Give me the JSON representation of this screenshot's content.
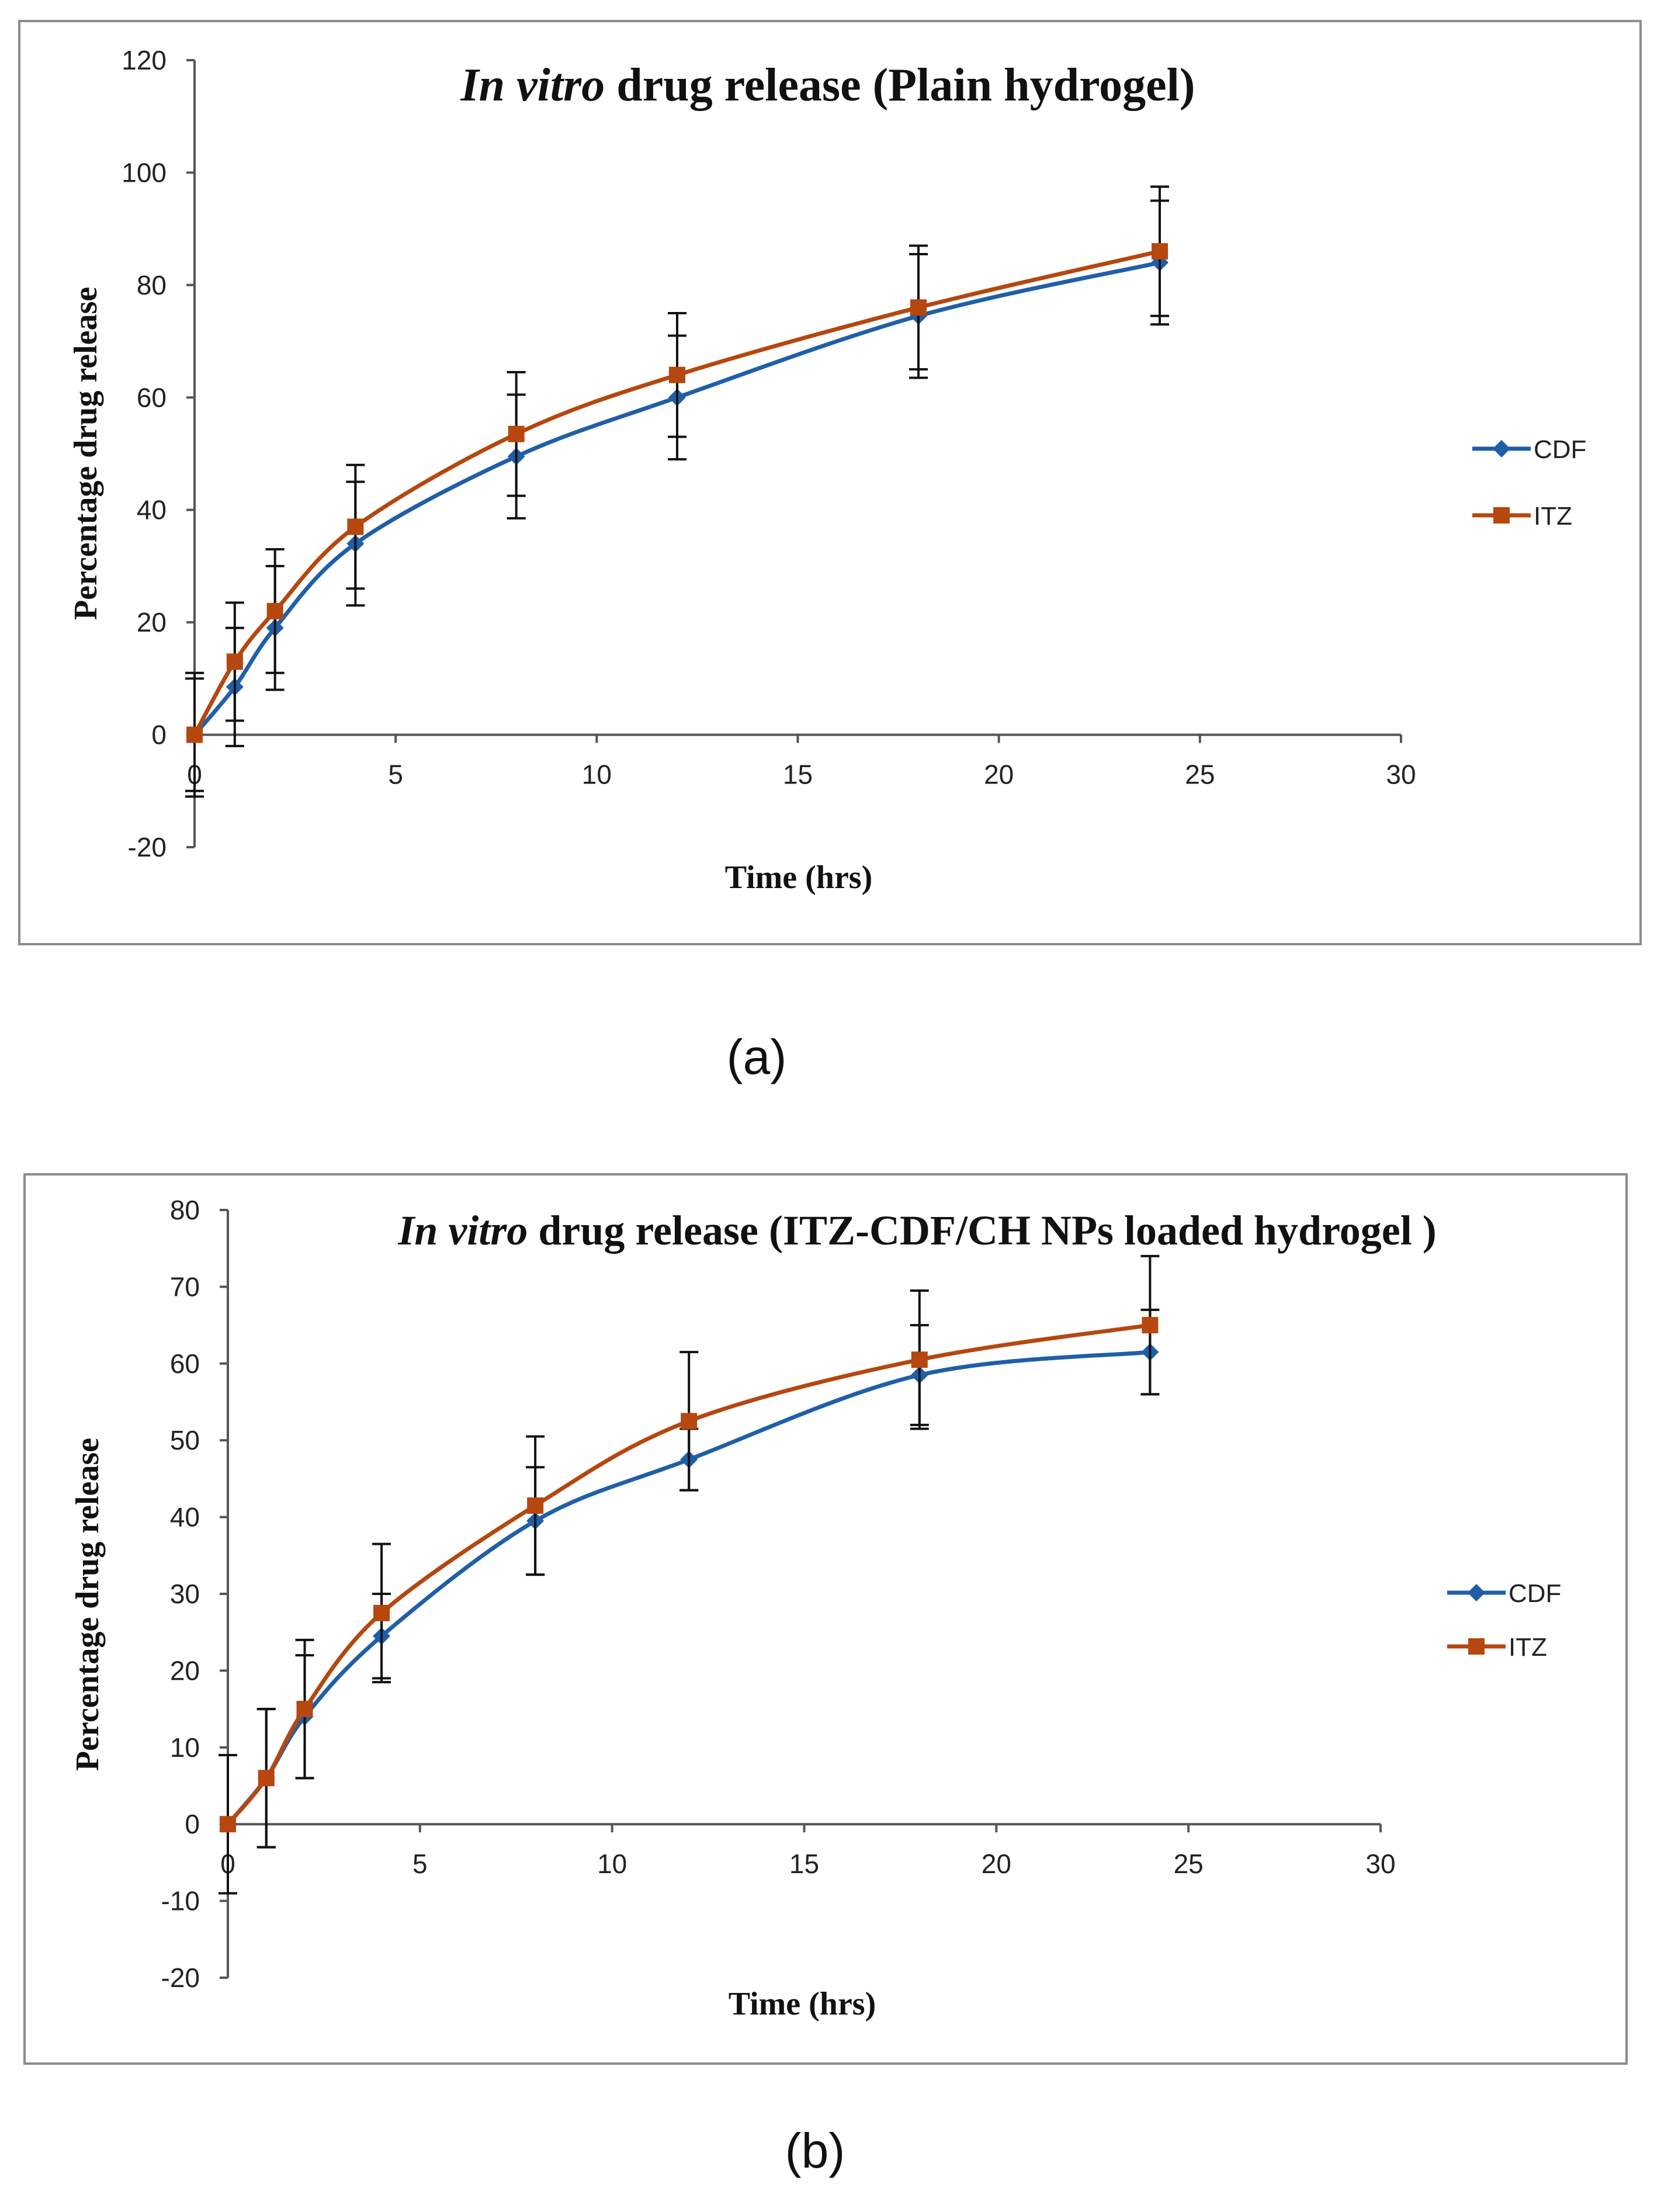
{
  "colors": {
    "CDF": "#1f5fa8",
    "ITZ": "#b5470f"
  },
  "chart_data": [
    {
      "panel": "a",
      "caption": "(a)",
      "type": "line",
      "title_italic": "In vitro",
      "title_rest": " drug release (Plain hydrogel)",
      "xlabel": "Time (hrs)",
      "ylabel": "Percentage drug release",
      "xlim": [
        0,
        30
      ],
      "ylim": [
        -20,
        120
      ],
      "xticks": [
        0,
        5,
        10,
        15,
        20,
        25,
        30
      ],
      "yticks": [
        -20,
        0,
        20,
        40,
        60,
        80,
        100,
        120
      ],
      "legend_position": "right",
      "series": [
        {
          "name": "CDF",
          "marker": "diamond",
          "x": [
            0,
            1,
            2,
            4,
            8,
            12,
            18,
            24
          ],
          "values": [
            0,
            8.5,
            19,
            34,
            49.5,
            60,
            74.5,
            84
          ],
          "error": [
            11,
            10.5,
            11,
            11,
            11,
            11,
            11,
            11
          ]
        },
        {
          "name": "ITZ",
          "marker": "square",
          "x": [
            0,
            1,
            2,
            4,
            8,
            12,
            18,
            24
          ],
          "values": [
            0,
            13,
            22,
            37,
            53.5,
            64,
            76,
            86
          ],
          "error": [
            10,
            10.5,
            11,
            11,
            11,
            11,
            11,
            11.5
          ]
        }
      ]
    },
    {
      "panel": "b",
      "caption": "(b)",
      "type": "line",
      "title_italic": "In vitro",
      "title_rest": " drug release (ITZ-CDF/CH NPs loaded hydrogel )",
      "xlabel": "Time (hrs)",
      "ylabel": "Percentage drug release",
      "xlim": [
        0,
        30
      ],
      "ylim": [
        -20,
        80
      ],
      "xticks": [
        0,
        5,
        10,
        15,
        20,
        25,
        30
      ],
      "yticks": [
        -20,
        -10,
        0,
        10,
        20,
        30,
        40,
        50,
        60,
        70,
        80
      ],
      "legend_position": "right",
      "series": [
        {
          "name": "CDF",
          "marker": "diamond",
          "x": [
            0,
            1,
            2,
            4,
            8,
            12,
            18,
            24
          ],
          "values": [
            0,
            6,
            14,
            24.5,
            39.5,
            47.5,
            58.5,
            61.5
          ],
          "error": [
            9,
            9,
            8,
            5.5,
            7,
            4,
            6.5,
            5.5
          ]
        },
        {
          "name": "ITZ",
          "marker": "square",
          "x": [
            0,
            1,
            2,
            4,
            8,
            12,
            18,
            24
          ],
          "values": [
            0,
            6,
            15,
            27.5,
            41.5,
            52.5,
            60.5,
            65
          ],
          "error": [
            9,
            9,
            9,
            9,
            9,
            9,
            9,
            9
          ]
        }
      ]
    }
  ]
}
